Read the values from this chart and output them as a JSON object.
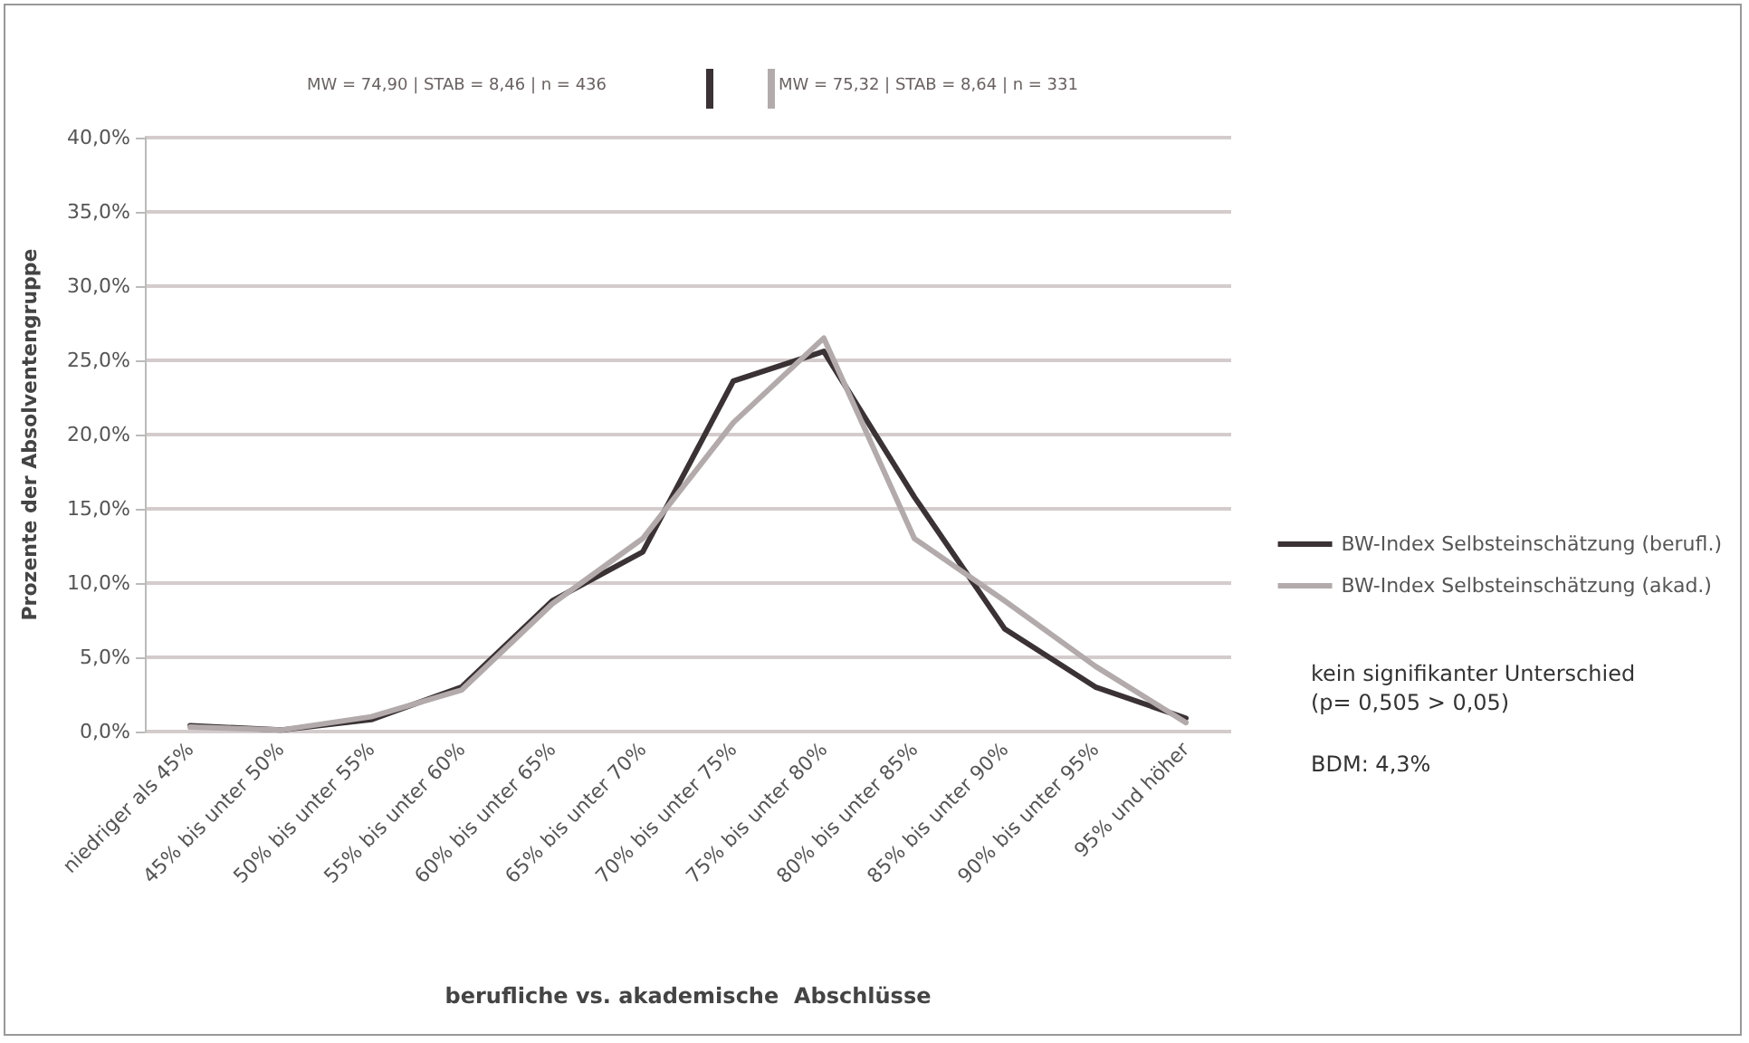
{
  "chart_data": {
    "type": "line",
    "xlabel": "berufliche vs. akademische  Abschlüsse",
    "ylabel": "Prozente der Absolventengruppe",
    "categories": [
      "niedriger als 45%",
      "45% bis unter 50%",
      "50% bis unter 55%",
      "55% bis unter 60%",
      "60% bis unter 65%",
      "65% bis unter 70%",
      "70% bis unter 75%",
      "75% bis unter 80%",
      "80% bis unter 85%",
      "85% bis unter 90%",
      "90% bis unter 95%",
      "95% und höher"
    ],
    "series": [
      {
        "name": "BW-Index Selbsteinschätzung (berufl.)",
        "color": "#3a3234",
        "values": [
          0.4,
          0.1,
          0.8,
          3.0,
          8.8,
          12.1,
          23.6,
          25.6,
          15.8,
          6.9,
          3.0,
          0.9
        ]
      },
      {
        "name": "BW-Index Selbsteinschätzung (akad.)",
        "color": "#b3abab",
        "values": [
          0.3,
          0.1,
          1.0,
          2.8,
          8.6,
          13.0,
          20.8,
          26.5,
          13.0,
          8.8,
          4.4,
          0.6
        ]
      }
    ],
    "ylim": [
      0,
      40
    ],
    "yticks": [
      {
        "value": 0,
        "label": "0,0%"
      },
      {
        "value": 5,
        "label": "5,0%"
      },
      {
        "value": 10,
        "label": "10,0%"
      },
      {
        "value": 15,
        "label": "15,0%"
      },
      {
        "value": 20,
        "label": "20,0%"
      },
      {
        "value": 25,
        "label": "25,0%"
      },
      {
        "value": 30,
        "label": "30,0%"
      },
      {
        "value": 35,
        "label": "35,0%"
      },
      {
        "value": 40,
        "label": "40,0%"
      }
    ],
    "grid": "y",
    "legend": "right",
    "marker": "none",
    "line_style": "solid",
    "annotations": [
      "MW = 74,90 | STAB = 8,46 | n = 436",
      "MW = 75,32 | STAB = 8,64 | n = 331",
      "kein signifikanter Unterschied\n(p= 0,505 > 0,05)",
      "BDM: 4,3%"
    ]
  }
}
